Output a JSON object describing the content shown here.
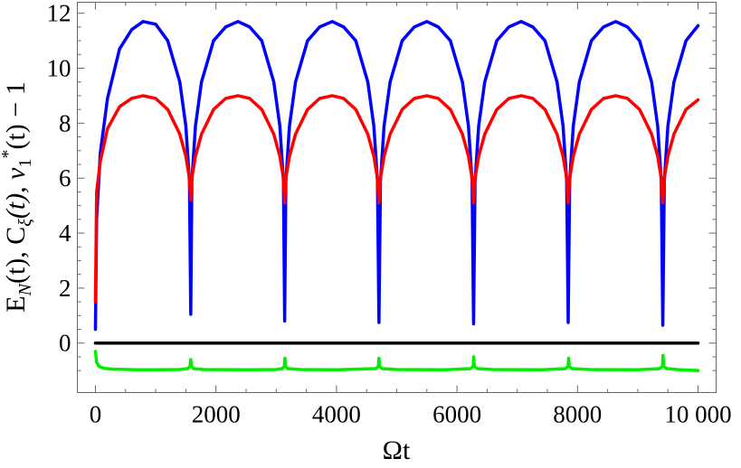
{
  "chart_data": {
    "type": "line",
    "title": "",
    "xlabel": "Ωt",
    "ylabel": "E_N(t), C_ξ(t), ν₁*(t) − 1",
    "ylabel_parts": {
      "p1": "E",
      "p1_sub": "N",
      "p2": "(t), C",
      "p2_sub": "ξ",
      "p3": "(t), ν",
      "p3_sub": "1",
      "p3_sup": "*",
      "p4": "(t) − 1"
    },
    "xlim": [
      -300,
      10300
    ],
    "ylim": [
      -1.8,
      12.4
    ],
    "x_ticks": [
      {
        "value": 0,
        "label": "0"
      },
      {
        "value": 2000,
        "label": "2000"
      },
      {
        "value": 4000,
        "label": "4000"
      },
      {
        "value": 6000,
        "label": "6000"
      },
      {
        "value": 8000,
        "label": "8000"
      },
      {
        "value": 10000,
        "label": "10 000"
      }
    ],
    "y_ticks": [
      {
        "value": 0,
        "label": "0"
      },
      {
        "value": 2,
        "label": "2"
      },
      {
        "value": 4,
        "label": "4"
      },
      {
        "value": 6,
        "label": "6"
      },
      {
        "value": 8,
        "label": "8"
      },
      {
        "value": 10,
        "label": "10"
      },
      {
        "value": 12,
        "label": "12"
      }
    ],
    "legend": "none",
    "grid": false,
    "series": [
      {
        "color": "#0000ff",
        "x": [
          0,
          20,
          80,
          200,
          400,
          600,
          790,
          1000,
          1200,
          1400,
          1500,
          1560,
          1582,
          1600,
          1660,
          1760,
          1960,
          2160,
          2365,
          2560,
          2760,
          2960,
          3060,
          3120,
          3140,
          3160,
          3220,
          3320,
          3520,
          3720,
          3930,
          4120,
          4320,
          4520,
          4620,
          4680,
          4705,
          4730,
          4790,
          4890,
          5090,
          5290,
          5500,
          5690,
          5890,
          6090,
          6190,
          6250,
          6275,
          6300,
          6360,
          6460,
          6660,
          6860,
          7065,
          7260,
          7460,
          7660,
          7760,
          7820,
          7845,
          7870,
          7930,
          8030,
          8230,
          8430,
          8635,
          8830,
          9030,
          9230,
          9330,
          9390,
          9415,
          9440,
          9500,
          9600,
          9800,
          10000
        ],
        "y": [
          0.5,
          4.5,
          6.9,
          8.9,
          10.7,
          11.4,
          11.7,
          11.6,
          11.0,
          9.5,
          7.9,
          5.9,
          1.05,
          5.9,
          7.9,
          9.5,
          11.0,
          11.5,
          11.7,
          11.5,
          11.0,
          9.5,
          7.9,
          5.9,
          0.8,
          5.9,
          7.9,
          9.5,
          11.0,
          11.5,
          11.7,
          11.5,
          11.0,
          9.5,
          7.9,
          5.9,
          0.75,
          5.9,
          7.9,
          9.5,
          11.0,
          11.5,
          11.7,
          11.5,
          11.0,
          9.5,
          7.9,
          5.9,
          0.7,
          5.9,
          7.9,
          9.5,
          11.0,
          11.5,
          11.7,
          11.5,
          11.0,
          9.5,
          7.9,
          5.9,
          0.75,
          5.9,
          7.9,
          9.5,
          11.0,
          11.5,
          11.7,
          11.5,
          11.0,
          9.5,
          7.9,
          5.9,
          0.65,
          5.9,
          7.9,
          9.5,
          11.0,
          11.55
        ]
      },
      {
        "color": "#ff0000",
        "x": [
          0,
          20,
          80,
          200,
          400,
          600,
          790,
          1000,
          1200,
          1400,
          1500,
          1560,
          1582,
          1600,
          1660,
          1760,
          1960,
          2160,
          2365,
          2560,
          2760,
          2960,
          3060,
          3120,
          3140,
          3160,
          3220,
          3320,
          3520,
          3720,
          3930,
          4120,
          4320,
          4520,
          4620,
          4680,
          4705,
          4730,
          4790,
          4890,
          5090,
          5290,
          5500,
          5690,
          5890,
          6090,
          6190,
          6250,
          6275,
          6300,
          6360,
          6460,
          6660,
          6860,
          7065,
          7260,
          7460,
          7660,
          7760,
          7820,
          7845,
          7870,
          7930,
          8030,
          8230,
          8430,
          8635,
          8830,
          9030,
          9230,
          9330,
          9390,
          9415,
          9440,
          9500,
          9600,
          9800,
          10000
        ],
        "y": [
          1.5,
          5.5,
          6.6,
          7.8,
          8.6,
          8.9,
          9.0,
          8.9,
          8.5,
          7.6,
          6.8,
          6.0,
          5.2,
          6.0,
          6.8,
          7.6,
          8.5,
          8.9,
          9.0,
          8.9,
          8.5,
          7.6,
          6.8,
          6.0,
          5.1,
          6.0,
          6.8,
          7.6,
          8.5,
          8.9,
          9.0,
          8.9,
          8.5,
          7.6,
          6.8,
          6.0,
          5.1,
          6.0,
          6.8,
          7.6,
          8.5,
          8.9,
          9.0,
          8.9,
          8.5,
          7.6,
          6.8,
          6.0,
          5.1,
          6.0,
          6.8,
          7.6,
          8.5,
          8.9,
          9.0,
          8.9,
          8.5,
          7.6,
          6.8,
          6.0,
          5.1,
          6.0,
          6.8,
          7.6,
          8.5,
          8.9,
          9.0,
          8.9,
          8.5,
          7.6,
          6.8,
          6.0,
          5.1,
          6.0,
          6.8,
          7.6,
          8.5,
          8.85
        ]
      },
      {
        "color": "#000000",
        "x": [
          0,
          10000
        ],
        "y": [
          0,
          0
        ]
      },
      {
        "color": "#00ee00",
        "x": [
          0,
          20,
          60,
          150,
          300,
          700,
          1000,
          1400,
          1530,
          1570,
          1582,
          1594,
          1630,
          1800,
          2500,
          3000,
          3100,
          3135,
          3145,
          3155,
          3190,
          3400,
          4000,
          4650,
          4695,
          4705,
          4715,
          4760,
          5000,
          5800,
          6220,
          6268,
          6278,
          6288,
          6340,
          6600,
          7400,
          7800,
          7843,
          7853,
          7863,
          7910,
          8200,
          9000,
          9360,
          9410,
          9420,
          9430,
          9480,
          9700,
          10000
        ],
        "y": [
          -0.3,
          -0.7,
          -0.85,
          -0.92,
          -0.95,
          -0.97,
          -0.97,
          -0.96,
          -0.93,
          -0.85,
          -0.6,
          -0.85,
          -0.93,
          -0.96,
          -0.97,
          -0.96,
          -0.93,
          -0.85,
          -0.55,
          -0.85,
          -0.93,
          -0.96,
          -0.97,
          -0.93,
          -0.85,
          -0.55,
          -0.85,
          -0.93,
          -0.96,
          -0.97,
          -0.93,
          -0.85,
          -0.5,
          -0.85,
          -0.93,
          -0.96,
          -0.97,
          -0.93,
          -0.85,
          -0.55,
          -0.85,
          -0.93,
          -0.96,
          -0.97,
          -0.93,
          -0.85,
          -0.45,
          -0.85,
          -0.93,
          -0.97,
          -1.0
        ]
      }
    ]
  }
}
